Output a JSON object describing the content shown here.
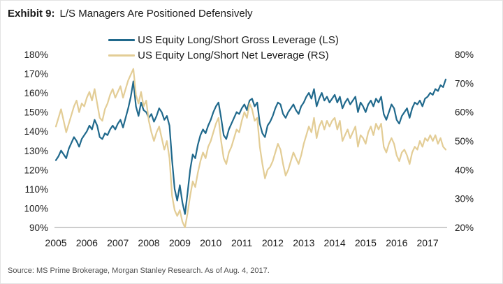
{
  "title": {
    "prefix": "Exhibit 9:",
    "text": "L/S Managers Are Positioned Defensively"
  },
  "source": "Source: MS Prime Brokerage, Morgan Stanley Research. As of Aug. 4, 2017.",
  "colors": {
    "gross_line": "#20698C",
    "net_line": "#E3CD96",
    "axis_line": "#9b9b9b",
    "text": "#1a1a1a",
    "source_text": "#4d4d4d"
  },
  "chart_data": {
    "type": "line",
    "title": "Exhibit 9: L/S Managers Are Positioned Defensively",
    "frequency": "monthly",
    "x_start": "2005-01",
    "x_end": "2017-08",
    "x_years": [
      2005,
      2006,
      2007,
      2008,
      2009,
      2010,
      2011,
      2012,
      2013,
      2014,
      2015,
      2016,
      2017
    ],
    "left_axis": {
      "min": 90,
      "max": 180,
      "step": 10,
      "format": "percent",
      "ticks": [
        "180%",
        "170%",
        "160%",
        "150%",
        "140%",
        "130%",
        "120%",
        "110%",
        "100%",
        "90%"
      ]
    },
    "right_axis": {
      "min": 20,
      "max": 80,
      "step": 10,
      "format": "percent",
      "ticks": [
        "80%",
        "70%",
        "60%",
        "50%",
        "40%",
        "30%",
        "20%"
      ]
    },
    "grid": false,
    "legend_position": "top-center",
    "series": [
      {
        "name": "US Equity Long/Short Gross Leverage (LS)",
        "axis": "left",
        "color": "#20698C",
        "data_name": "gross-leverage-line",
        "values": [
          125,
          127,
          130,
          128,
          126,
          131,
          134,
          137,
          135,
          132,
          136,
          138,
          140,
          143,
          141,
          146,
          143,
          137,
          136,
          139,
          138,
          141,
          143,
          141,
          144,
          146,
          142,
          147,
          152,
          158,
          166,
          153,
          148,
          155,
          151,
          150,
          147,
          149,
          145,
          148,
          152,
          150,
          146,
          148,
          143,
          125,
          110,
          104,
          112,
          103,
          97,
          108,
          120,
          128,
          126,
          133,
          138,
          141,
          139,
          143,
          146,
          150,
          153,
          155,
          147,
          138,
          136,
          141,
          144,
          147,
          150,
          149,
          152,
          154,
          151,
          156,
          157,
          153,
          155,
          144,
          139,
          137,
          143,
          145,
          148,
          152,
          155,
          154,
          149,
          147,
          150,
          152,
          154,
          151,
          149,
          153,
          155,
          158,
          160,
          157,
          162,
          153,
          157,
          160,
          156,
          158,
          155,
          157,
          159,
          155,
          158,
          152,
          155,
          157,
          154,
          156,
          158,
          150,
          155,
          153,
          150,
          154,
          156,
          153,
          157,
          155,
          158,
          149,
          146,
          150,
          154,
          152,
          146,
          144,
          148,
          150,
          152,
          147,
          152,
          155,
          154,
          156,
          153,
          157,
          158,
          160,
          159,
          162,
          161,
          164,
          163,
          167
        ]
      },
      {
        "name": "US Equity Long/Short Net Leverage (RS)",
        "axis": "right",
        "color": "#E3CD96",
        "data_name": "net-leverage-line",
        "values": [
          55,
          58,
          61,
          57,
          53,
          56,
          59,
          62,
          64,
          60,
          63,
          62,
          65,
          67,
          64,
          68,
          63,
          58,
          57,
          61,
          63,
          66,
          68,
          65,
          67,
          69,
          65,
          68,
          71,
          73,
          75,
          66,
          63,
          67,
          62,
          64,
          57,
          53,
          50,
          53,
          55,
          51,
          47,
          50,
          44,
          31,
          26,
          24,
          26,
          22,
          20,
          25,
          31,
          36,
          34,
          39,
          43,
          46,
          44,
          48,
          50,
          53,
          56,
          58,
          50,
          44,
          42,
          46,
          48,
          51,
          54,
          53,
          57,
          60,
          58,
          63,
          61,
          57,
          58,
          48,
          42,
          37,
          40,
          41,
          43,
          46,
          49,
          47,
          42,
          38,
          40,
          43,
          46,
          44,
          42,
          45,
          49,
          52,
          55,
          53,
          58,
          51,
          55,
          57,
          54,
          57,
          55,
          57,
          58,
          54,
          57,
          50,
          52,
          54,
          51,
          53,
          55,
          48,
          52,
          51,
          49,
          53,
          55,
          52,
          56,
          54,
          56,
          48,
          46,
          49,
          51,
          49,
          45,
          43,
          46,
          47,
          45,
          42,
          46,
          48,
          47,
          50,
          48,
          51,
          50,
          52,
          50,
          52,
          49,
          51,
          48,
          47
        ]
      }
    ]
  }
}
